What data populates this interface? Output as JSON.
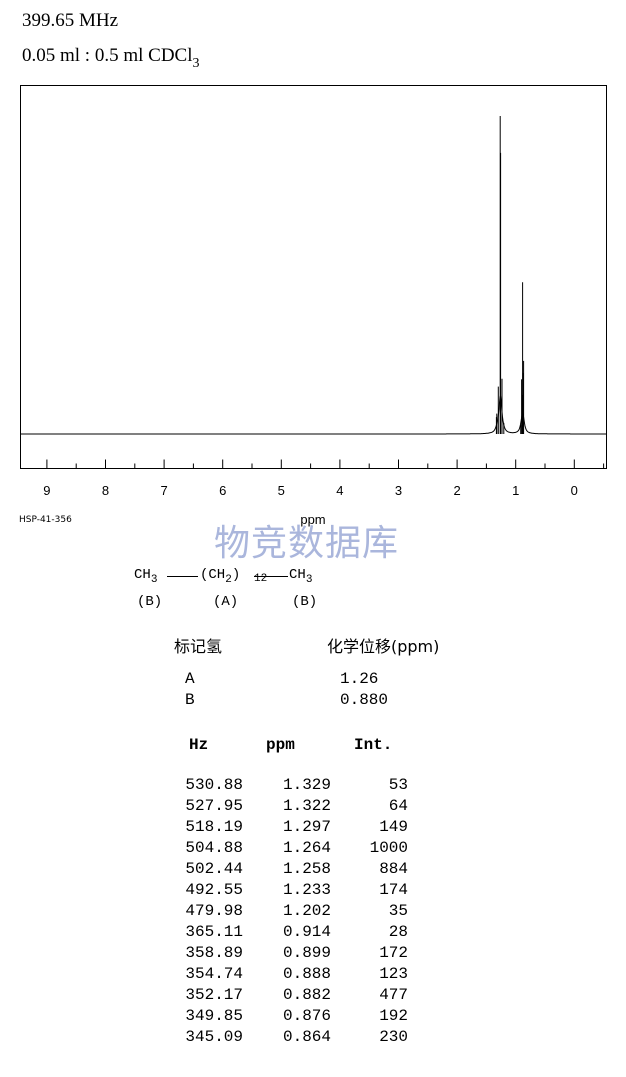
{
  "header": {
    "frequency": "399.65 MHz",
    "solvent_prefix": "0.05 ml : 0.5 ml CDCl",
    "solvent_subscript": "3"
  },
  "chart_data": {
    "type": "line",
    "xlabel": "ppm",
    "xlim": [
      9.45,
      -0.55
    ],
    "x_reversed": true,
    "x_ticks": [
      "9",
      "8",
      "7",
      "6",
      "5",
      "4",
      "3",
      "2",
      "1",
      "0"
    ],
    "grid": false,
    "peaks": [
      {
        "ppm": 1.329,
        "intensity": 53
      },
      {
        "ppm": 1.322,
        "intensity": 64
      },
      {
        "ppm": 1.297,
        "intensity": 149
      },
      {
        "ppm": 1.264,
        "intensity": 1000
      },
      {
        "ppm": 1.258,
        "intensity": 884
      },
      {
        "ppm": 1.233,
        "intensity": 174
      },
      {
        "ppm": 1.202,
        "intensity": 35
      },
      {
        "ppm": 0.914,
        "intensity": 28
      },
      {
        "ppm": 0.899,
        "intensity": 172
      },
      {
        "ppm": 0.888,
        "intensity": 123
      },
      {
        "ppm": 0.882,
        "intensity": 477
      },
      {
        "ppm": 0.876,
        "intensity": 192
      },
      {
        "ppm": 0.864,
        "intensity": 230
      }
    ]
  },
  "spectrum_code": "HSP-41-356",
  "watermark": "物竞数据库",
  "structure": {
    "ch3_left": "CH",
    "ch3_left_sub": "3",
    "ch2_open": "(CH",
    "ch2_sub": "2",
    "ch2_close": ")",
    "ch2_count": "12",
    "ch3_right": "CH",
    "ch3_right_sub": "3",
    "label_left": "(B)",
    "label_mid": "(A)",
    "label_right": "(B)"
  },
  "assignment": {
    "col1_header": "标记氢",
    "col2_header": "化学位移(ppm)",
    "rows": [
      {
        "label": "A",
        "shift": "1.26"
      },
      {
        "label": "B",
        "shift": "0.880"
      }
    ]
  },
  "peak_table": {
    "headers": {
      "hz": "Hz",
      "ppm": "ppm",
      "int": "Int."
    },
    "rows": [
      {
        "hz": "530.88",
        "ppm": "1.329",
        "int": "53"
      },
      {
        "hz": "527.95",
        "ppm": "1.322",
        "int": "64"
      },
      {
        "hz": "518.19",
        "ppm": "1.297",
        "int": "149"
      },
      {
        "hz": "504.88",
        "ppm": "1.264",
        "int": "1000"
      },
      {
        "hz": "502.44",
        "ppm": "1.258",
        "int": "884"
      },
      {
        "hz": "492.55",
        "ppm": "1.233",
        "int": "174"
      },
      {
        "hz": "479.98",
        "ppm": "1.202",
        "int": "35"
      },
      {
        "hz": "365.11",
        "ppm": "0.914",
        "int": "28"
      },
      {
        "hz": "358.89",
        "ppm": "0.899",
        "int": "172"
      },
      {
        "hz": "354.74",
        "ppm": "0.888",
        "int": "123"
      },
      {
        "hz": "352.17",
        "ppm": "0.882",
        "int": "477"
      },
      {
        "hz": "349.85",
        "ppm": "0.876",
        "int": "192"
      },
      {
        "hz": "345.09",
        "ppm": "0.864",
        "int": "230"
      }
    ]
  }
}
